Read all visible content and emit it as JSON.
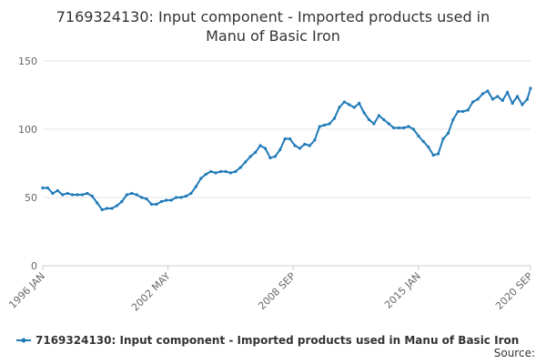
{
  "chart_data": {
    "type": "line",
    "title": [
      "7169324130: Input component - Imported products used in",
      "Manu of Basic Iron"
    ],
    "x": [
      "1996-01",
      "1996-04",
      "1996-07",
      "1996-10",
      "1997-01",
      "1997-04",
      "1997-07",
      "1997-10",
      "1998-01",
      "1998-04",
      "1998-07",
      "1998-10",
      "1999-01",
      "1999-04",
      "1999-07",
      "1999-10",
      "2000-01",
      "2000-04",
      "2000-07",
      "2000-10",
      "2001-01",
      "2001-04",
      "2001-07",
      "2001-10",
      "2002-01",
      "2002-04",
      "2002-07",
      "2002-10",
      "2003-01",
      "2003-04",
      "2003-07",
      "2003-10",
      "2004-01",
      "2004-04",
      "2004-07",
      "2004-10",
      "2005-01",
      "2005-04",
      "2005-07",
      "2005-10",
      "2006-01",
      "2006-04",
      "2006-07",
      "2006-10",
      "2007-01",
      "2007-04",
      "2007-07",
      "2007-10",
      "2008-01",
      "2008-04",
      "2008-07",
      "2008-10",
      "2009-01",
      "2009-04",
      "2009-07",
      "2009-10",
      "2010-01",
      "2010-04",
      "2010-07",
      "2010-10",
      "2011-01",
      "2011-04",
      "2011-07",
      "2011-10",
      "2012-01",
      "2012-04",
      "2012-07",
      "2012-10",
      "2013-01",
      "2013-04",
      "2013-07",
      "2013-10",
      "2014-01",
      "2014-04",
      "2014-07",
      "2014-10",
      "2015-01",
      "2015-04",
      "2015-07",
      "2015-10",
      "2016-01",
      "2016-04",
      "2016-07",
      "2016-10",
      "2017-01",
      "2017-04",
      "2017-07",
      "2017-10",
      "2018-01",
      "2018-04",
      "2018-07",
      "2018-10",
      "2019-01",
      "2019-04",
      "2019-07",
      "2019-10",
      "2020-01",
      "2020-04",
      "2020-07",
      "2020-09"
    ],
    "series": [
      {
        "name": "7169324130: Input component - Imported products used in Manu of Basic Iron",
        "color": "#1f7ab8",
        "values": [
          57,
          57,
          53,
          55,
          52,
          53,
          52,
          52,
          52,
          53,
          51,
          46,
          41,
          42,
          42,
          44,
          47,
          52,
          53,
          52,
          50,
          49,
          45,
          45,
          47,
          48,
          48,
          50,
          50,
          51,
          53,
          58,
          64,
          67,
          69,
          68,
          69,
          69,
          68,
          69,
          72,
          76,
          80,
          83,
          88,
          86,
          79,
          80,
          85,
          93,
          93,
          88,
          86,
          89,
          88,
          92,
          102,
          103,
          104,
          108,
          116,
          120,
          118,
          116,
          119,
          112,
          107,
          104,
          110,
          107,
          104,
          101,
          101,
          101,
          102,
          100,
          95,
          91,
          87,
          81,
          82,
          93,
          97,
          107,
          113,
          113,
          114,
          120,
          122,
          126,
          128,
          122,
          124,
          121,
          127,
          119,
          124,
          118,
          122,
          130
        ]
      }
    ],
    "xlim": [
      "1996-01",
      "2020-09"
    ],
    "xticks": [
      {
        "value": "1996-01",
        "label": "1996 JAN"
      },
      {
        "value": "2002-05",
        "label": "2002 MAY"
      },
      {
        "value": "2008-09",
        "label": "2008 SEP"
      },
      {
        "value": "2015-01",
        "label": "2015 JAN"
      },
      {
        "value": "2020-09",
        "label": "2020 SEP"
      }
    ],
    "ylim": [
      0,
      150
    ],
    "yticks": [
      0,
      50,
      100,
      150
    ],
    "grid": true,
    "source": "Source:"
  }
}
